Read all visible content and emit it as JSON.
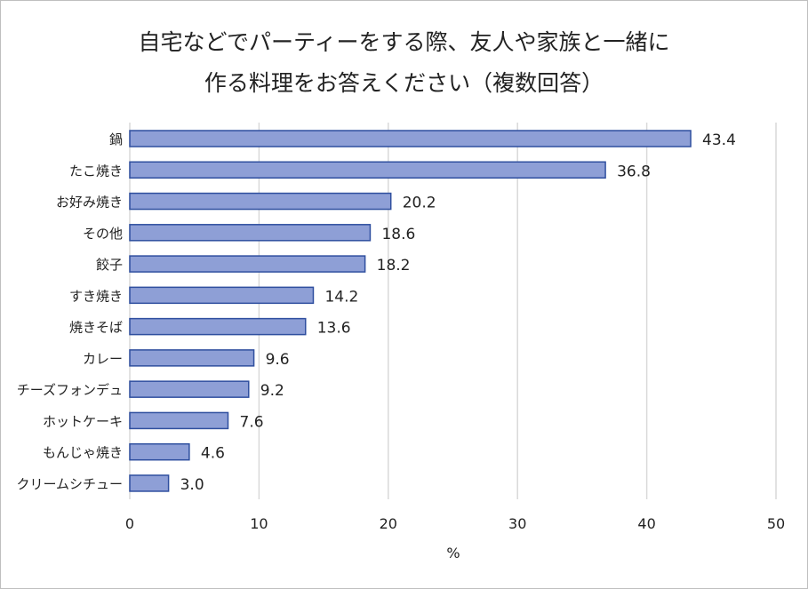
{
  "chart_data": {
    "type": "bar",
    "orientation": "horizontal",
    "title_lines": [
      "自宅などでパーティーをする際、友人や家族と一緒に",
      "作る料理をお答えください（複数回答）"
    ],
    "categories": [
      "鍋",
      "たこ焼き",
      "お好み焼き",
      "その他",
      "餃子",
      "すき焼き",
      "焼きそば",
      "カレー",
      "チーズフォンデュ",
      "ホットケーキ",
      "もんじゃ焼き",
      "クリームシチュー"
    ],
    "values": [
      43.4,
      36.8,
      20.2,
      18.6,
      18.2,
      14.2,
      13.6,
      9.6,
      9.2,
      7.6,
      4.6,
      3.0
    ],
    "data_labels": [
      "43.4",
      "36.8",
      "20.2",
      "18.6",
      "18.2",
      "14.2",
      "13.6",
      "9.6",
      "9.2",
      "7.6",
      "4.6",
      "3.0"
    ],
    "xlabel": "%",
    "ylabel": "",
    "xlim": [
      0,
      50
    ],
    "xticks": [
      "0",
      "10",
      "20",
      "30",
      "40",
      "50"
    ],
    "grid": "vertical",
    "legend": "none",
    "colors": {
      "bar_fill": "#8e9fd6",
      "bar_border": "#2f4f9f",
      "grid": "#d9d9d9"
    }
  }
}
